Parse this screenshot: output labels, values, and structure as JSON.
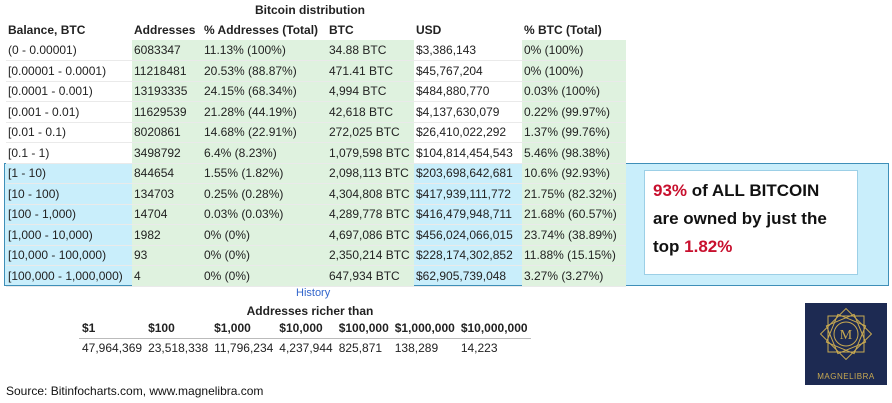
{
  "title": "Bitcoin distribution",
  "columns": [
    "Balance, BTC",
    "Addresses",
    "% Addresses (Total)",
    "BTC",
    "USD",
    "% BTC (Total)"
  ],
  "rows": [
    [
      "(0 - 0.00001)",
      "6083347",
      "11.13% (100%)",
      "34.88 BTC",
      "$3,386,143",
      "0% (100%)"
    ],
    [
      "[0.00001 - 0.0001)",
      "11218481",
      "20.53% (88.87%)",
      "471.41 BTC",
      "$45,767,204",
      "0% (100%)"
    ],
    [
      "[0.0001 - 0.001)",
      "13193335",
      "24.15% (68.34%)",
      "4,994 BTC",
      "$484,880,770",
      "0.03% (100%)"
    ],
    [
      "[0.001 - 0.01)",
      "11629539",
      "21.28% (44.19%)",
      "42,618 BTC",
      "$4,137,630,079",
      "0.22% (99.97%)"
    ],
    [
      "[0.01 - 0.1)",
      "8020861",
      "14.68% (22.91%)",
      "272,025 BTC",
      "$26,410,022,292",
      "1.37% (99.76%)"
    ],
    [
      "[0.1 - 1)",
      "3498792",
      "6.4% (8.23%)",
      "1,079,598 BTC",
      "$104,814,454,543",
      "5.46% (98.38%)"
    ],
    [
      "[1 - 10)",
      "844654",
      "1.55% (1.82%)",
      "2,098,113 BTC",
      "$203,698,642,681",
      "10.6% (92.93%)"
    ],
    [
      "[10 - 100)",
      "134703",
      "0.25% (0.28%)",
      "4,304,808 BTC",
      "$417,939,111,772",
      "21.75% (82.32%)"
    ],
    [
      "[100 - 1,000)",
      "14704",
      "0.03% (0.03%)",
      "4,289,778 BTC",
      "$416,479,948,711",
      "21.68% (60.57%)"
    ],
    [
      "[1,000 - 10,000)",
      "1982",
      "0% (0%)",
      "4,697,086 BTC",
      "$456,024,066,015",
      "23.74% (38.89%)"
    ],
    [
      "[10,000 - 100,000)",
      "93",
      "0% (0%)",
      "2,350,214 BTC",
      "$228,174,302,852",
      "11.88% (15.15%)"
    ],
    [
      "[100,000 - 1,000,000)",
      "4",
      "0% (0%)",
      "647,934 BTC",
      "$62,905,739,048",
      "3.27% (3.27%)"
    ]
  ],
  "callout": {
    "pct_red": "93%",
    "line1_rest": " of ALL BITCOIN",
    "line2": "are owned by just the",
    "line3_start": "top ",
    "pct2_red": "1.82%"
  },
  "history_link": "History",
  "rich": {
    "title": "Addresses richer than",
    "headers": [
      "$1",
      "$100",
      "$1,000",
      "$10,000",
      "$100,000",
      "$1,000,000",
      "$10,000,000"
    ],
    "values": [
      "47,964,369",
      "23,518,338",
      "11,796,234",
      "4,237,944",
      "825,871",
      "138,289",
      "14,223"
    ]
  },
  "logo": {
    "text": "MAGNELIBRA",
    "monogram": "M",
    "gold": "#c8a951",
    "navy": "#1d2a52"
  },
  "source": "Source: Bitinfocharts.com, www.magnelibra.com",
  "colors": {
    "highlight": "#c9eefb",
    "green_bar": "#dff2df",
    "red": "#c8102e"
  }
}
